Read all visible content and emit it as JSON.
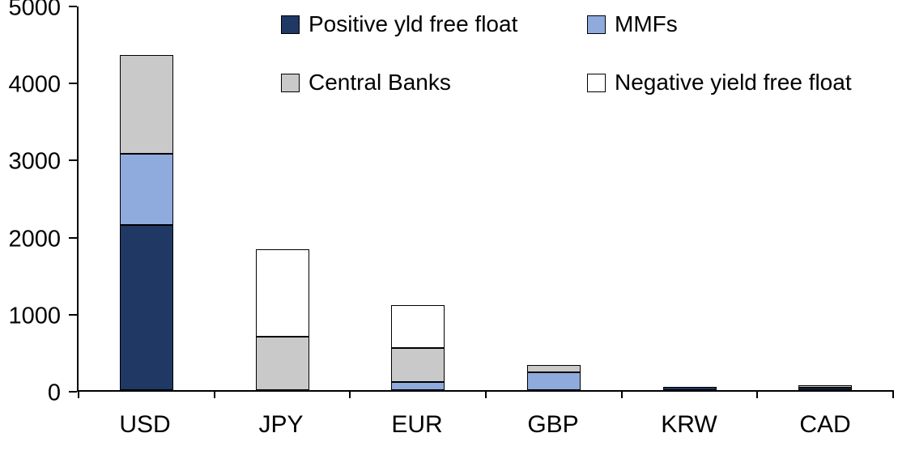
{
  "chart_data": {
    "type": "bar",
    "stacked": true,
    "title": "",
    "xlabel": "",
    "ylabel": "",
    "categories": [
      "USD",
      "JPY",
      "EUR",
      "GBP",
      "KRW",
      "CAD"
    ],
    "series": [
      {
        "name": "Positive yld free float",
        "color": "#1f3864",
        "values": [
          2150,
          0,
          0,
          0,
          40,
          35
        ]
      },
      {
        "name": "MMFs",
        "color": "#8faadc",
        "values": [
          930,
          0,
          110,
          230,
          0,
          0
        ]
      },
      {
        "name": "Central Banks",
        "color": "#c9c9c9",
        "values": [
          1290,
          700,
          440,
          100,
          0,
          25
        ]
      },
      {
        "name": "Negative yield free float",
        "color": "#ffffff",
        "values": [
          0,
          1140,
          560,
          0,
          0,
          0
        ]
      }
    ],
    "ylim": [
      0,
      5000
    ],
    "yticks": [
      0,
      1000,
      2000,
      3000,
      4000,
      5000
    ],
    "grid": false,
    "legend_position": "top-inside",
    "axis_color": "#000000"
  }
}
